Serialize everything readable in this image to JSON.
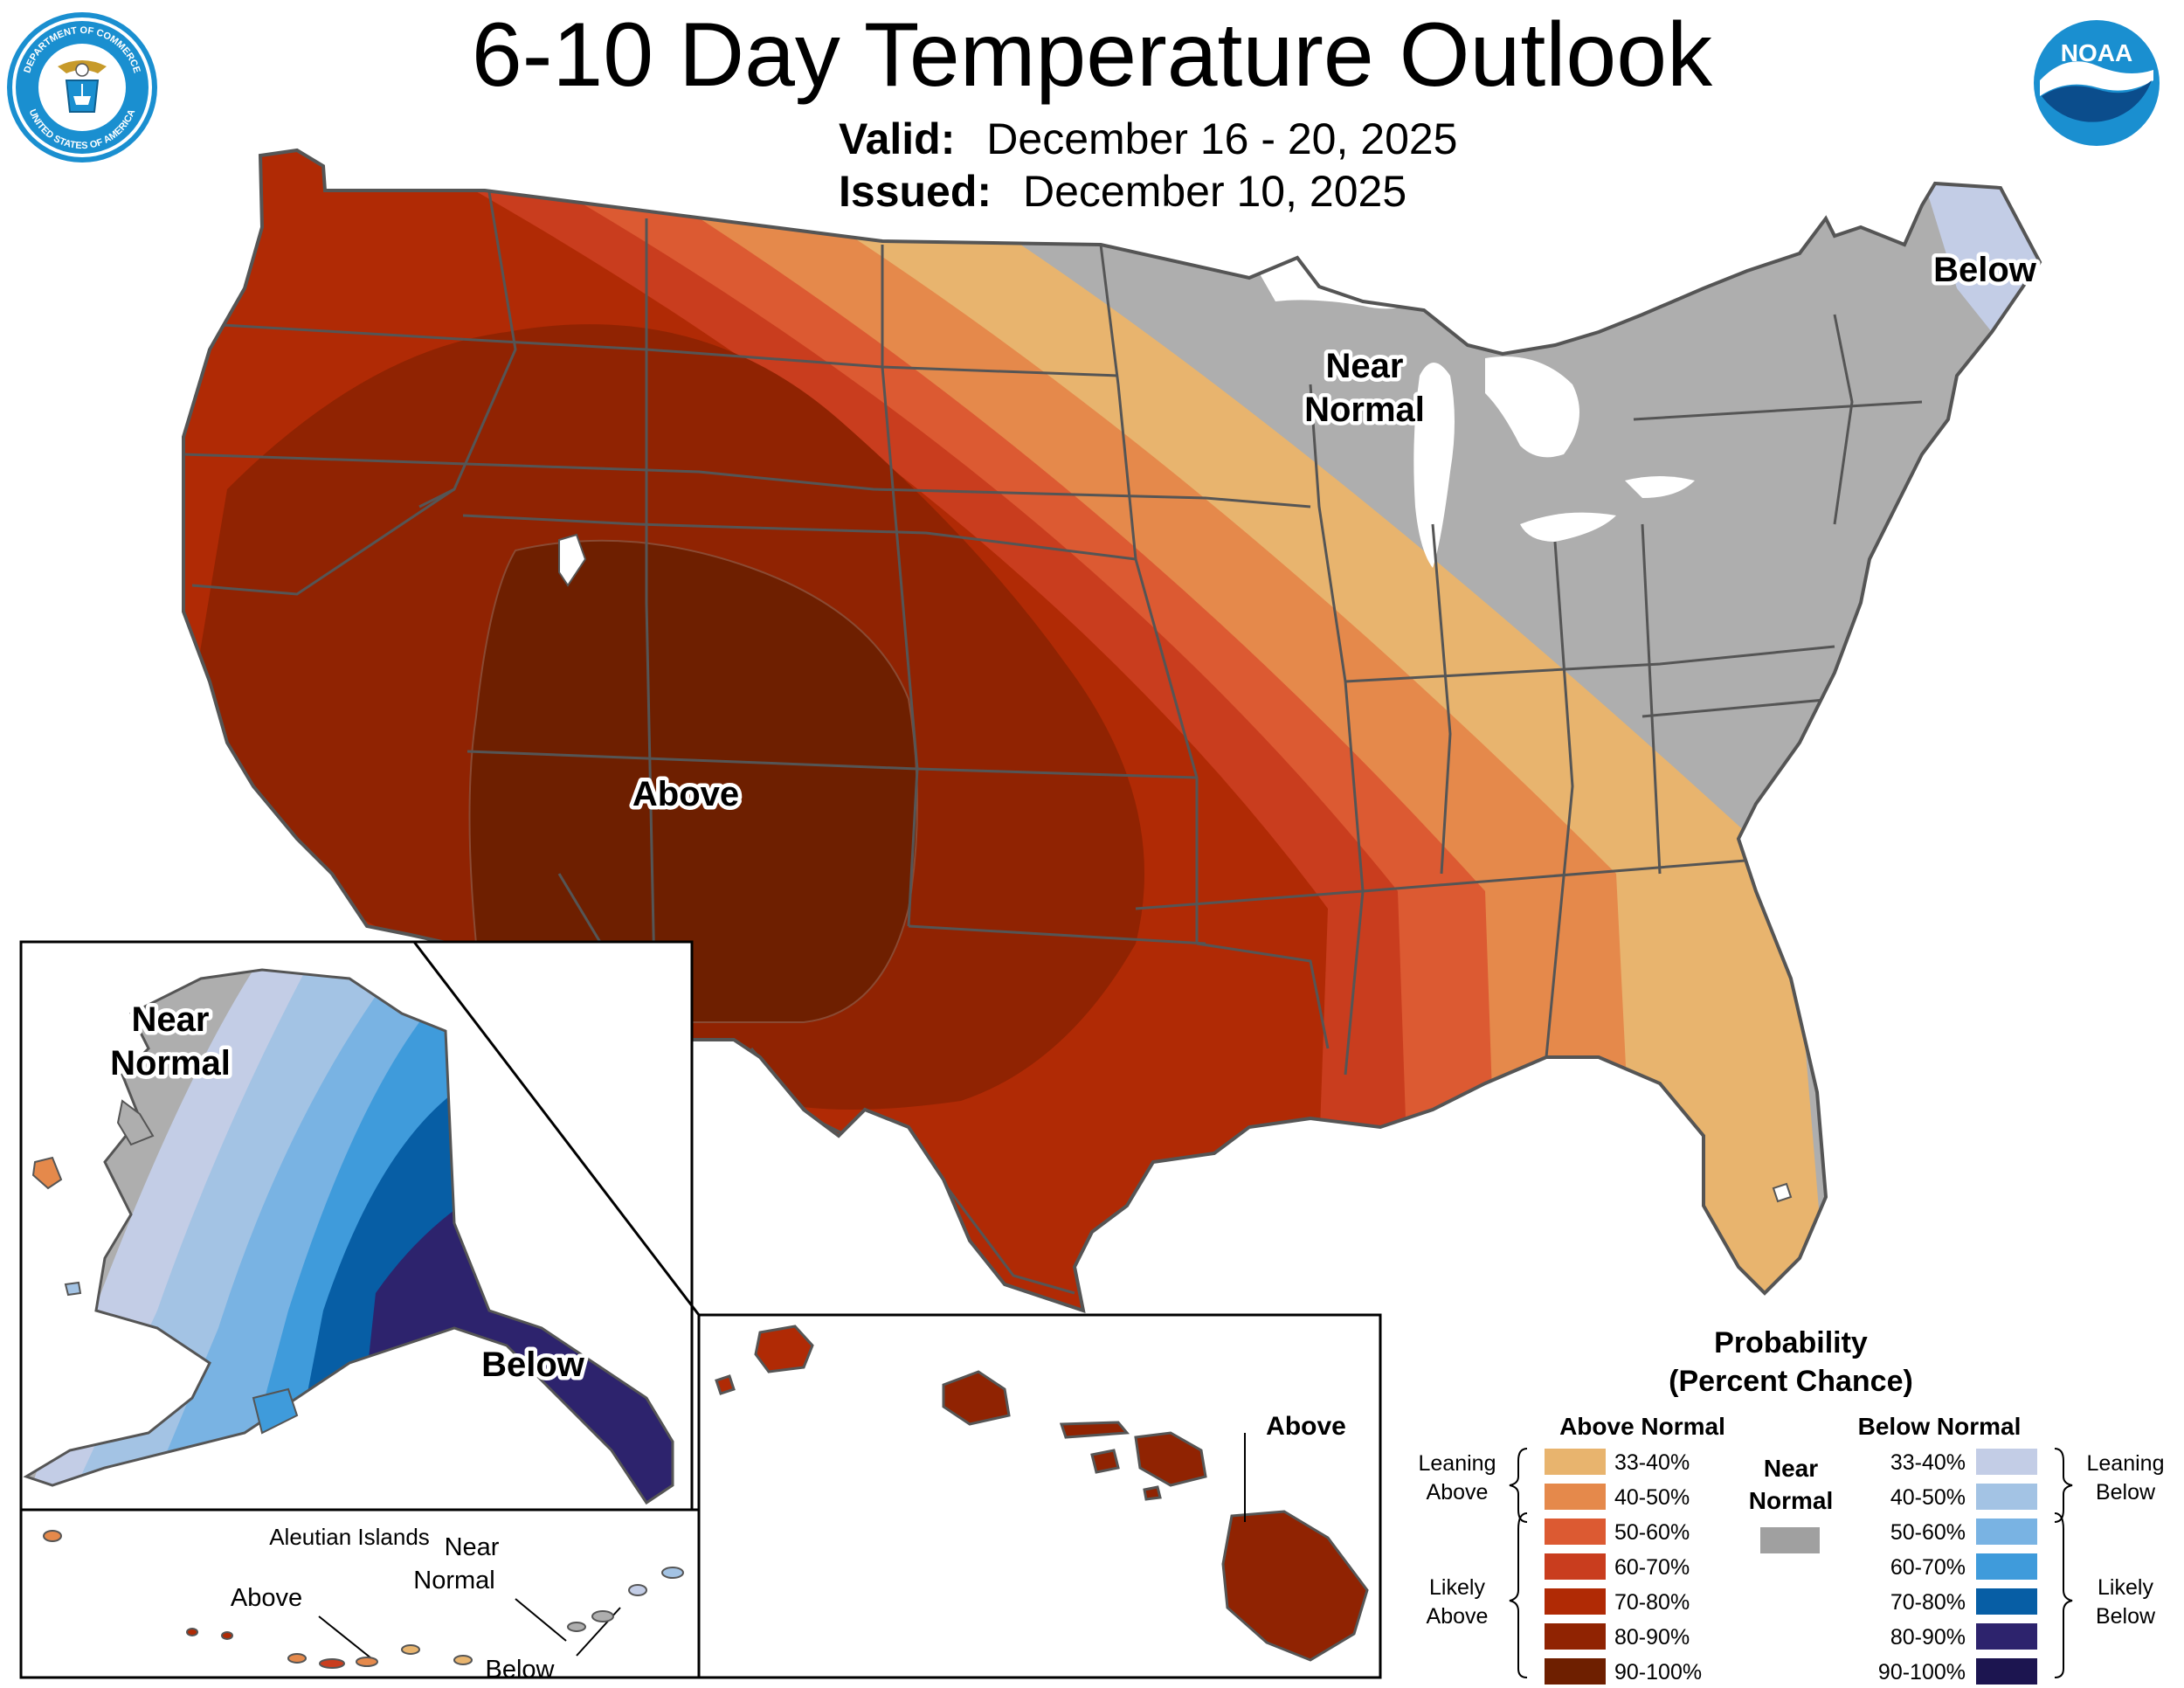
{
  "header": {
    "title": "6-10 Day Temperature Outlook",
    "valid_label": "Valid:",
    "valid_value": "December 16 - 20, 2025",
    "issued_label": "Issued:",
    "issued_value": "December 10, 2025"
  },
  "logos": {
    "doc": {
      "name": "department-of-commerce-seal",
      "text_top": "DEPARTMENT OF COMMERCE",
      "text_bottom": "UNITED STATES OF AMERICA"
    },
    "noaa": {
      "name": "noaa-logo",
      "text": "NOAA"
    }
  },
  "map_labels": {
    "conus_above": "Above",
    "conus_near": [
      "Near",
      "Normal"
    ],
    "conus_below": "Below",
    "alaska_near": [
      "Near",
      "Normal"
    ],
    "alaska_below": "Below",
    "aleutian_title": "Aleutian Islands",
    "aleutian_above": "Above",
    "aleutian_near": [
      "Near",
      "Normal"
    ],
    "aleutian_below": "Below",
    "hawaii_above": "Above"
  },
  "legend": {
    "title_line1": "Probability",
    "title_line2": "(Percent Chance)",
    "above_header": "Above Normal",
    "below_header": "Below Normal",
    "near_label": [
      "Near",
      "Normal"
    ],
    "leaning_above": [
      "Leaning",
      "Above"
    ],
    "likely_above": [
      "Likely",
      "Above"
    ],
    "leaning_below": [
      "Leaning",
      "Below"
    ],
    "likely_below": [
      "Likely",
      "Below"
    ],
    "above_bins": [
      {
        "range": "33-40%",
        "color": "#e8b46e"
      },
      {
        "range": "40-50%",
        "color": "#e5894b"
      },
      {
        "range": "50-60%",
        "color": "#dc5a32"
      },
      {
        "range": "60-70%",
        "color": "#c93d1e"
      },
      {
        "range": "70-80%",
        "color": "#b02a05"
      },
      {
        "range": "80-90%",
        "color": "#902302"
      },
      {
        "range": "90-100%",
        "color": "#6e1f00"
      }
    ],
    "below_bins": [
      {
        "range": "33-40%",
        "color": "#c3cde6"
      },
      {
        "range": "40-50%",
        "color": "#a3c3e4"
      },
      {
        "range": "50-60%",
        "color": "#79b3e3"
      },
      {
        "range": "60-70%",
        "color": "#3f9bdb"
      },
      {
        "range": "70-80%",
        "color": "#075ea5"
      },
      {
        "range": "80-90%",
        "color": "#2d236d"
      },
      {
        "range": "90-100%",
        "color": "#1c1550"
      }
    ],
    "near_color": "#a0a0a0"
  },
  "colors": {
    "near_normal_gray": "#aeaeae",
    "lake_white": "#ffffff",
    "state_border": "#555555"
  }
}
